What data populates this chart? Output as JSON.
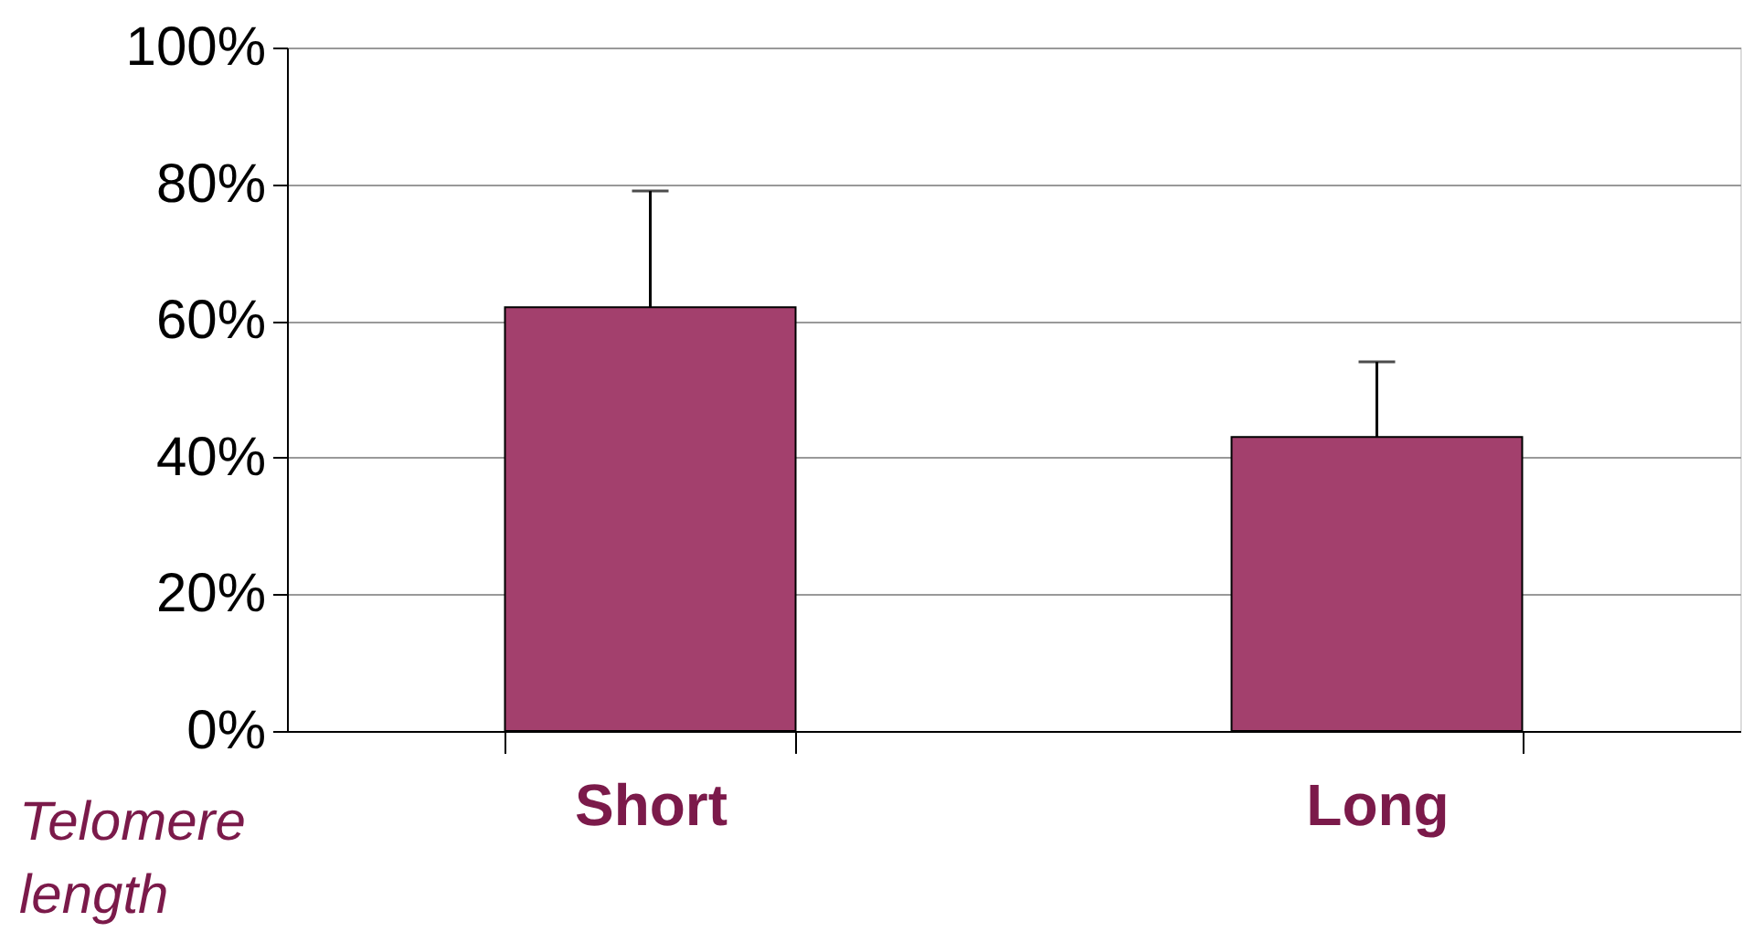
{
  "chart_data": {
    "type": "bar",
    "xlabel": "Telomere length",
    "categories": [
      "Short",
      "Long"
    ],
    "values": [
      62,
      43
    ],
    "color": "#a3406d",
    "errors": [
      [
        62,
        79
      ],
      [
        43,
        54
      ]
    ],
    "ylim": [
      0,
      100
    ],
    "yticks": [
      {
        "value": 0,
        "label": "0%"
      },
      {
        "value": 20,
        "label": "20%"
      },
      {
        "value": 40,
        "label": "40%"
      },
      {
        "value": 60,
        "label": "60%"
      },
      {
        "value": 80,
        "label": "80%"
      },
      {
        "value": 100,
        "label": "100%"
      }
    ],
    "grid": "y"
  }
}
